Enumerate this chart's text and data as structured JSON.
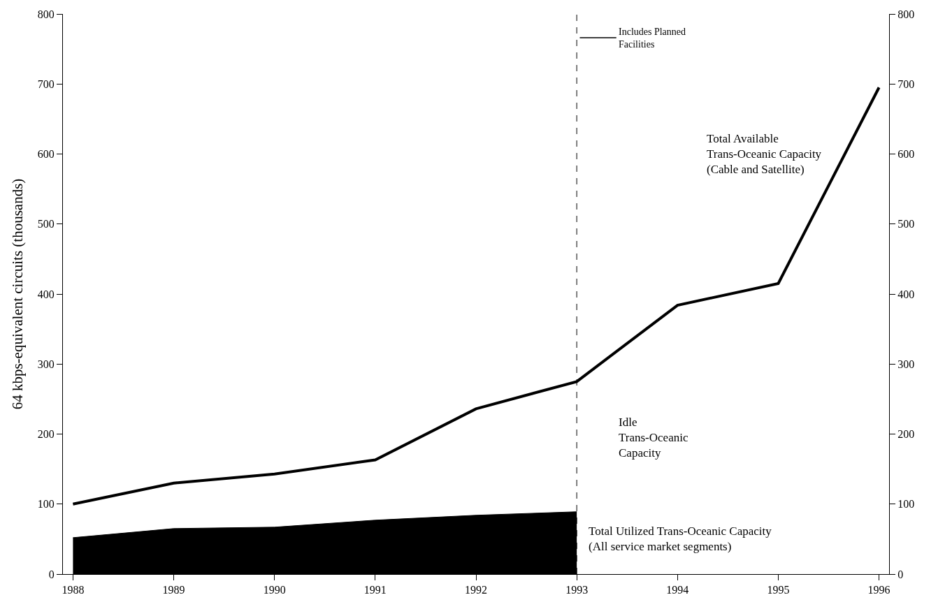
{
  "chart_data": {
    "type": "line",
    "ylabel": "64 kbps-equivalent circuits (thousands)",
    "x": [
      1988,
      1989,
      1990,
      1991,
      1992,
      1993,
      1994,
      1995,
      1996
    ],
    "xlim": [
      1987.9,
      1996.1
    ],
    "xticks": [
      1988,
      1989,
      1990,
      1991,
      1992,
      1993,
      1994,
      1995,
      1996
    ],
    "ylim": [
      0,
      800
    ],
    "yticks": [
      0,
      100,
      200,
      300,
      400,
      500,
      600,
      700,
      800
    ],
    "y2lim": [
      0,
      800
    ],
    "y2ticks": [
      0,
      100,
      200,
      300,
      400,
      500,
      600,
      700,
      800
    ],
    "series": [
      {
        "name": "Total Utilized Trans-Oceanic Capacity\n(All service market segments)",
        "type": "area",
        "color": "#000000",
        "values": [
          52,
          65,
          67,
          77,
          84,
          89,
          null,
          null,
          null
        ]
      },
      {
        "name": "Total Available\nTrans-Oceanic Capacity\n(Cable and Satellite)",
        "color": "#000000",
        "values": [
          100,
          130,
          143,
          163,
          236,
          275,
          384,
          415,
          695
        ]
      }
    ],
    "ref_lines": [
      {
        "axis": "x",
        "value": 1993,
        "line_style": "dashed",
        "color": "#000000"
      }
    ],
    "annotations": [
      "Includes Planned\nFacilities",
      "Idle\nTrans-Oceanic\nCapacity"
    ],
    "marker": "none",
    "line_style": "solid"
  }
}
